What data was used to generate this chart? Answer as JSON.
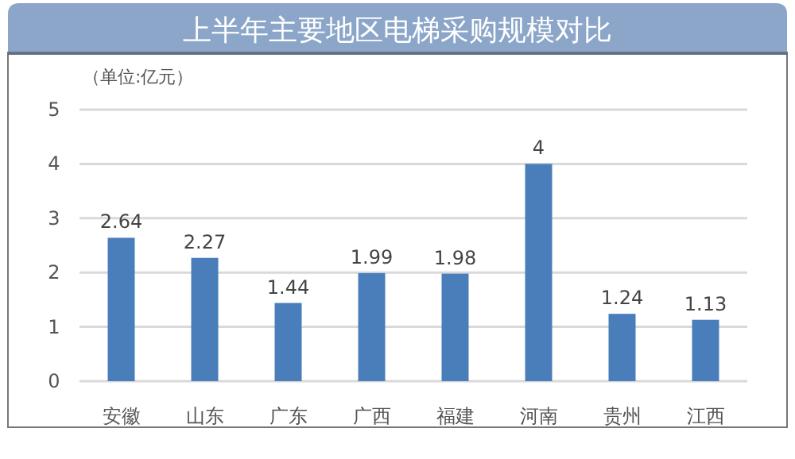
{
  "chart_data": {
    "type": "bar",
    "title": "上半年主要地区电梯采购规模对比",
    "ylabel": "（单位:亿元）",
    "categories": [
      "安徽",
      "山东",
      "广东",
      "广西",
      "福建",
      "河南",
      "贵州",
      "江西"
    ],
    "values": [
      2.64,
      2.27,
      1.44,
      1.99,
      1.98,
      4,
      1.24,
      1.13
    ],
    "color": "#4a7ebb",
    "ylim": [
      0,
      5
    ],
    "yticks": [
      0,
      1,
      2,
      3,
      4,
      5
    ],
    "grid": "y",
    "data_labels": true
  }
}
